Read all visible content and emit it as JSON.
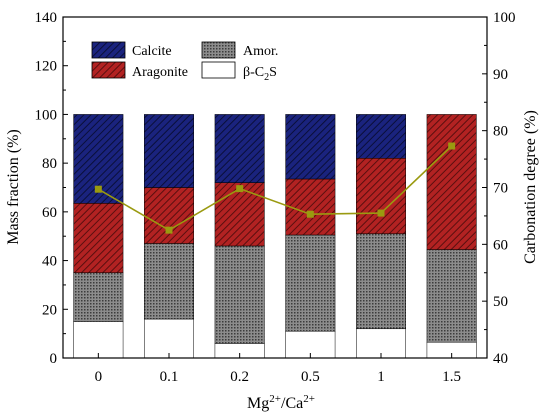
{
  "chart_data": {
    "type": "bar",
    "stacked": true,
    "categories": [
      "0",
      "0.1",
      "0.2",
      "0.5",
      "1",
      "1.5"
    ],
    "xlabel": {
      "base": "Mg",
      "sup1": "2+",
      "mid": "/Ca",
      "sup2": "2+"
    },
    "ylabel_left": "Mass fraction (%)",
    "ylabel_right": "Carbonation degree (%)",
    "ylim_left": [
      0,
      140
    ],
    "yticks_left": [
      "0",
      "20",
      "40",
      "60",
      "80",
      "100",
      "120",
      "140"
    ],
    "ylim_right": [
      40,
      100
    ],
    "yticks_right": [
      "40",
      "50",
      "60",
      "70",
      "80",
      "90",
      "100"
    ],
    "series": [
      {
        "name": "β-C",
        "name_sub": "2",
        "name_tail": "S",
        "values": [
          15,
          16,
          6,
          11,
          12,
          6.5
        ],
        "color": "#ffffff"
      },
      {
        "name": "Amor.",
        "values": [
          20,
          31,
          40,
          39.5,
          39,
          38
        ],
        "color": "#808080"
      },
      {
        "name": "Aragonite",
        "values": [
          28.5,
          23,
          26,
          23,
          31,
          55.5
        ],
        "color": "#b22222"
      },
      {
        "name": "Calcite",
        "values": [
          36.5,
          30,
          28,
          26.5,
          18,
          0
        ],
        "color": "#1a237e"
      }
    ],
    "line": {
      "axis": "right",
      "values": [
        69.7,
        62.5,
        69.8,
        65.3,
        65.5,
        77.3
      ],
      "color": "#9a9a10"
    },
    "legend": {
      "placement": "top-left",
      "order": [
        "Calcite",
        "Amor.",
        "Aragonite",
        "β-C"
      ]
    }
  }
}
